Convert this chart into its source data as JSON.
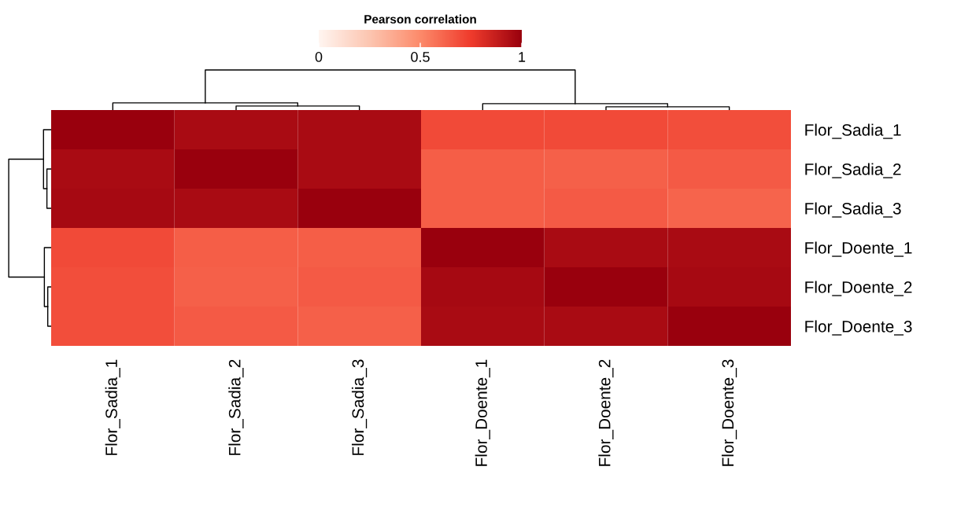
{
  "chart_data": {
    "type": "heatmap",
    "clabel": "Pearson correlation",
    "categories": [
      "Flor_Sadia_1",
      "Flor_Sadia_2",
      "Flor_Sadia_3",
      "Flor_Doente_1",
      "Flor_Doente_2",
      "Flor_Doente_3"
    ],
    "y_categories": [
      "Flor_Sadia_1",
      "Flor_Sadia_2",
      "Flor_Sadia_3",
      "Flor_Doente_1",
      "Flor_Doente_2",
      "Flor_Doente_3"
    ],
    "cells": [
      [
        1,
        0.95,
        0.95,
        0.7,
        0.7,
        0.69
      ],
      [
        0.95,
        1,
        0.95,
        0.64,
        0.63,
        0.65
      ],
      [
        0.96,
        0.95,
        1,
        0.64,
        0.65,
        0.62
      ],
      [
        0.7,
        0.64,
        0.64,
        1,
        0.95,
        0.95
      ],
      [
        0.69,
        0.63,
        0.65,
        0.96,
        1,
        0.96
      ],
      [
        0.69,
        0.65,
        0.63,
        0.95,
        0.95,
        1
      ]
    ],
    "clim": [
      0,
      1
    ],
    "cticks": [
      0,
      0.5,
      1
    ]
  }
}
